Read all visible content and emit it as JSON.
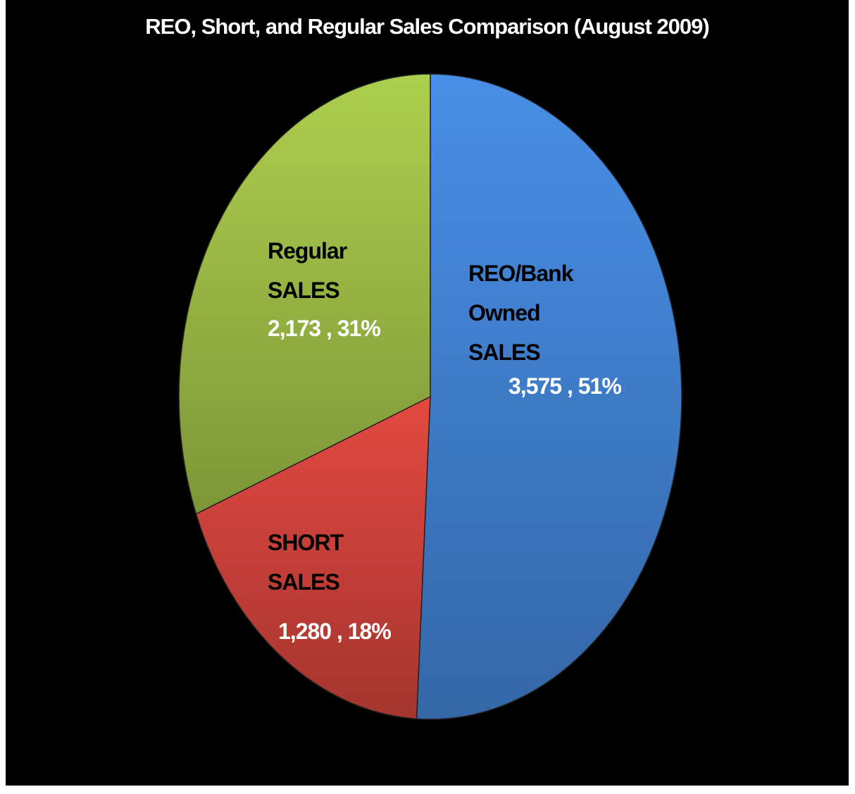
{
  "chart_data": {
    "type": "pie",
    "title": "REO, Short, and Regular Sales Comparison (August 2009)",
    "categories": [
      "REO/Bank Owned SALES",
      "SHORT SALES",
      "Regular SALES"
    ],
    "values": [
      3575,
      1280,
      2173
    ],
    "value_labels": [
      "3,575 , 51%",
      "1,280 , 18%",
      "2,173 , 31%"
    ],
    "colors": [
      "#4384d6",
      "#d2443c",
      "#a0c048"
    ]
  }
}
